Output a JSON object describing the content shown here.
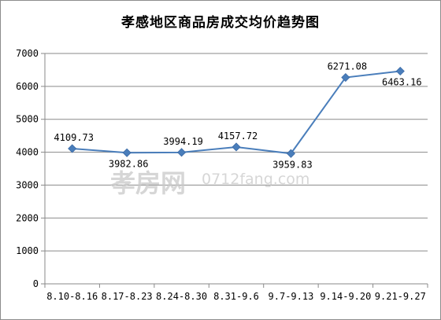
{
  "chart_data": {
    "type": "line",
    "title": "孝感地区商品房成交均价趋势图",
    "categories": [
      "8.10-8.16",
      "8.17-8.23",
      "8.24-8.30",
      "8.31-9.6",
      "9.7-9.13",
      "9.14-9.20",
      "9.21-9.27"
    ],
    "values": [
      4109.73,
      3982.86,
      3994.19,
      4157.72,
      3959.83,
      6271.08,
      6463.16
    ],
    "data_labels": [
      "4109.73",
      "3982.86",
      "3994.19",
      "4157.72",
      "3959.83",
      "6271.08",
      "6463.16"
    ],
    "yticks": [
      "0",
      "1000",
      "2000",
      "3000",
      "4000",
      "5000",
      "6000",
      "7000"
    ],
    "ylim": [
      0,
      7000
    ],
    "xlabel": "",
    "ylabel": "",
    "grid": true,
    "legend": "none",
    "line_color": "#4a7ebb",
    "marker": "diamond"
  },
  "watermark": {
    "text": "孝房网",
    "domain": "0712fang.com"
  }
}
